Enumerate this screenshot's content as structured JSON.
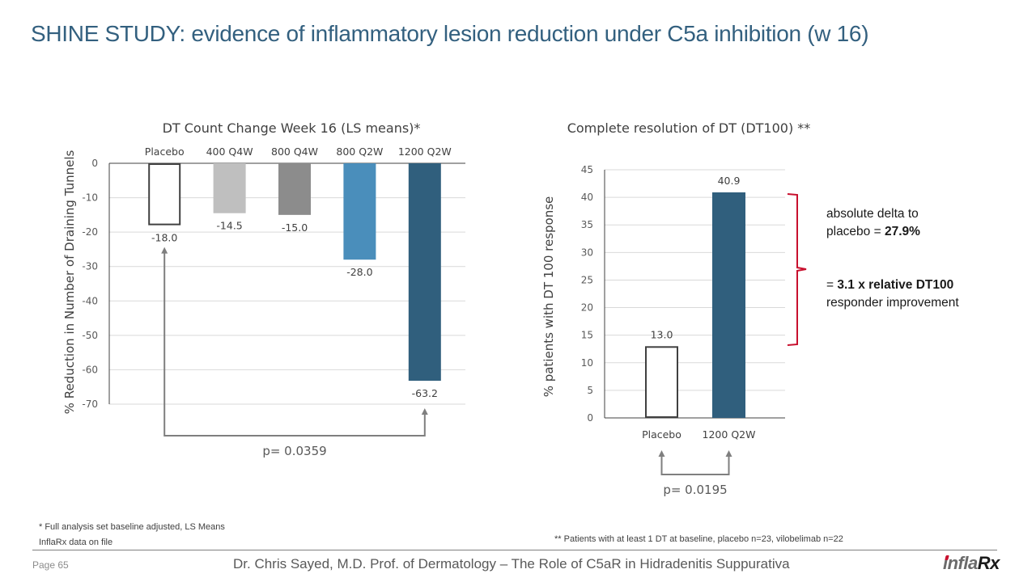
{
  "slide": {
    "title": "SHINE STUDY: evidence of inflammatory lesion reduction under C5a inhibition (w 16)",
    "page_label": "Page 65",
    "presenter": "Dr. Chris Sayed, M.D. Prof. of Dermatology – The Role of C5aR in Hidradenitis Suppurativa",
    "logo": {
      "prefix": "infla",
      "suffix": "Rx"
    },
    "footnotes": {
      "left_1": "* Full analysis set baseline adjusted, LS Means",
      "left_2": "InflaRx data on file",
      "right": "** Patients with at least 1 DT at baseline, placebo n=23, vilobelimab n=22"
    },
    "annotation": {
      "line1": "absolute delta to",
      "line2_prefix": "placebo = ",
      "line2_bold": "27.9%",
      "line3_prefix": "= ",
      "line3_bold": "3.1 x relative DT100",
      "line4": "responder improvement",
      "bracket_color": "#c8102e"
    }
  },
  "chart_data": [
    {
      "type": "bar",
      "title": "DT Count Change Week 16 (LS means)*",
      "xlabel": "",
      "ylabel": "% Reduction in Number of Draining Tunnels",
      "categories": [
        "Placebo",
        "400 Q4W",
        "800 Q4W",
        "800 Q2W",
        "1200 Q2W"
      ],
      "values": [
        -18.0,
        -14.5,
        -15.0,
        -28.0,
        -63.2
      ],
      "data_labels": [
        "-18.0",
        "-14.5",
        "-15.0",
        "-28.0",
        "-63.2"
      ],
      "colors": [
        "#ffffff",
        "#bfbfbf",
        "#8c8c8c",
        "#4a8ebb",
        "#305f7d"
      ],
      "outlined": [
        true,
        false,
        false,
        false,
        false
      ],
      "ylim": [
        -70,
        0
      ],
      "yticks": [
        0,
        -10,
        -20,
        -30,
        -40,
        -50,
        -60,
        -70
      ],
      "grid": true,
      "comparison": {
        "from": "Placebo",
        "to": "1200 Q2W",
        "label": "p= 0.0359"
      }
    },
    {
      "type": "bar",
      "title": "Complete resolution of DT (DT100) **",
      "xlabel": "",
      "ylabel": "% patients with DT 100 response",
      "categories": [
        "Placebo",
        "1200 Q2W"
      ],
      "values": [
        13.0,
        40.9
      ],
      "data_labels": [
        "13.0",
        "40.9"
      ],
      "colors": [
        "#ffffff",
        "#305f7d"
      ],
      "outlined": [
        true,
        false
      ],
      "ylim": [
        0,
        45
      ],
      "yticks": [
        0,
        5,
        10,
        15,
        20,
        25,
        30,
        35,
        40,
        45
      ],
      "grid": true,
      "comparison": {
        "from": "Placebo",
        "to": "1200 Q2W",
        "label": "p= 0.0195"
      }
    }
  ]
}
